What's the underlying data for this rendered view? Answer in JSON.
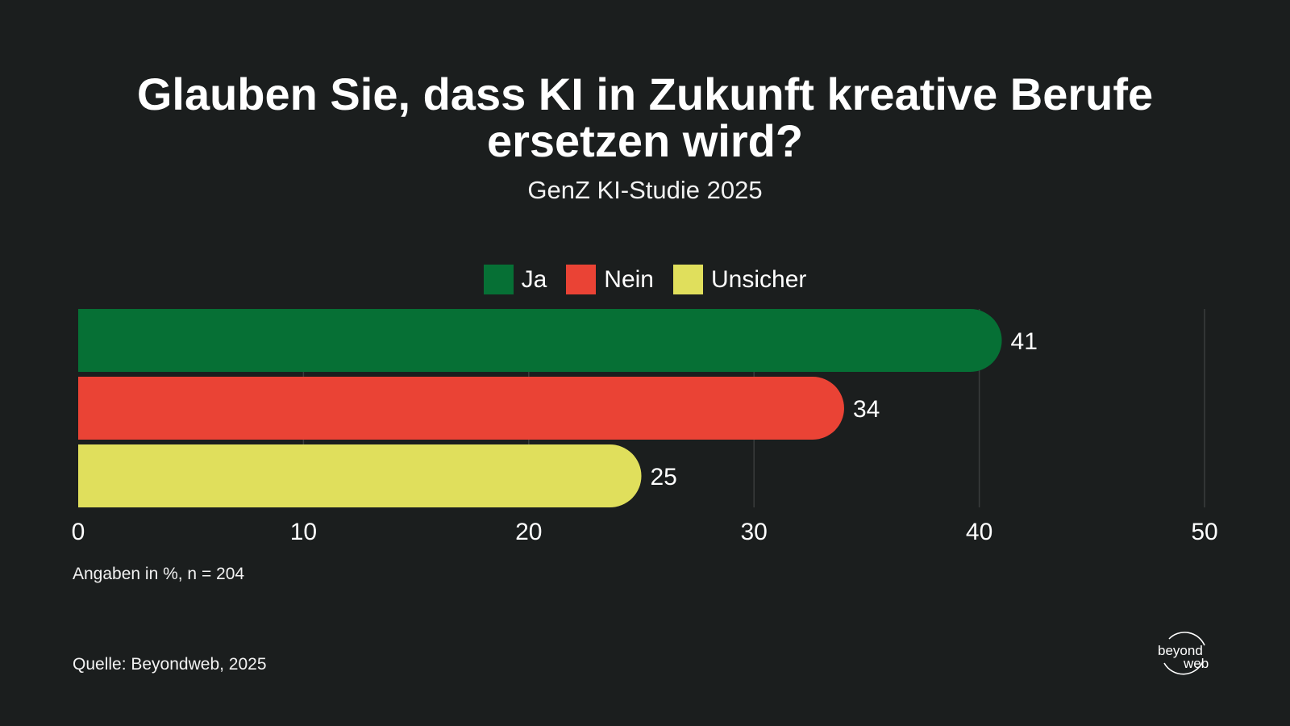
{
  "header": {
    "title": "Glauben Sie, dass KI in Zukunft kreative Berufe ersetzen wird?",
    "subtitle": "GenZ KI-Studie 2025"
  },
  "chart_data": {
    "type": "bar",
    "orientation": "horizontal",
    "title": "Glauben Sie, dass KI in Zukunft kreative Berufe ersetzen wird?",
    "subtitle": "GenZ KI-Studie 2025",
    "categories": [
      "Ja",
      "Nein",
      "Unsicher"
    ],
    "values": [
      41,
      34,
      25
    ],
    "colors": [
      "#067035",
      "#ea4335",
      "#e0df5c"
    ],
    "xlim": [
      0,
      50
    ],
    "x_ticks": [
      0,
      10,
      20,
      30,
      40,
      50
    ],
    "grid": "vertical",
    "legend_placement": "top-center",
    "data_labels": true
  },
  "legend": {
    "items": [
      {
        "label": "Ja",
        "color": "#067035"
      },
      {
        "label": "Nein",
        "color": "#ea4335"
      },
      {
        "label": "Unsicher",
        "color": "#e0df5c"
      }
    ]
  },
  "footer": {
    "note": "Angaben in %, n = 204",
    "source": "Quelle: Beyondweb, 2025"
  },
  "logo": {
    "line1": "beyond",
    "line2": "web"
  }
}
